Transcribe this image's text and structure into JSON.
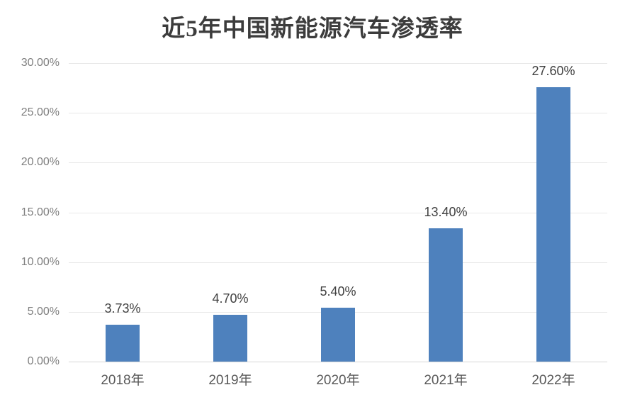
{
  "title": "近5年中国新能源汽车渗透率",
  "chart_data": {
    "type": "bar",
    "title": "近5年中国新能源汽车渗透率",
    "categories": [
      "2018年",
      "2019年",
      "2020年",
      "2021年",
      "2022年"
    ],
    "values": [
      3.73,
      4.7,
      5.4,
      13.4,
      27.6
    ],
    "data_labels": [
      "3.73%",
      "4.70%",
      "5.40%",
      "13.40%",
      "27.60%"
    ],
    "y_ticks": [
      "30.00%",
      "25.00%",
      "20.00%",
      "15.00%",
      "10.00%",
      "5.00%",
      "0.00%"
    ],
    "xlabel": "",
    "ylabel": "",
    "ylim": [
      0,
      30
    ],
    "grid": "horizontal",
    "legend": "none",
    "bar_color": "#4E81BD",
    "gridline_color": "#e8e8e8",
    "label_color": "#404040",
    "axis_text_color": "#7f7f7f"
  }
}
